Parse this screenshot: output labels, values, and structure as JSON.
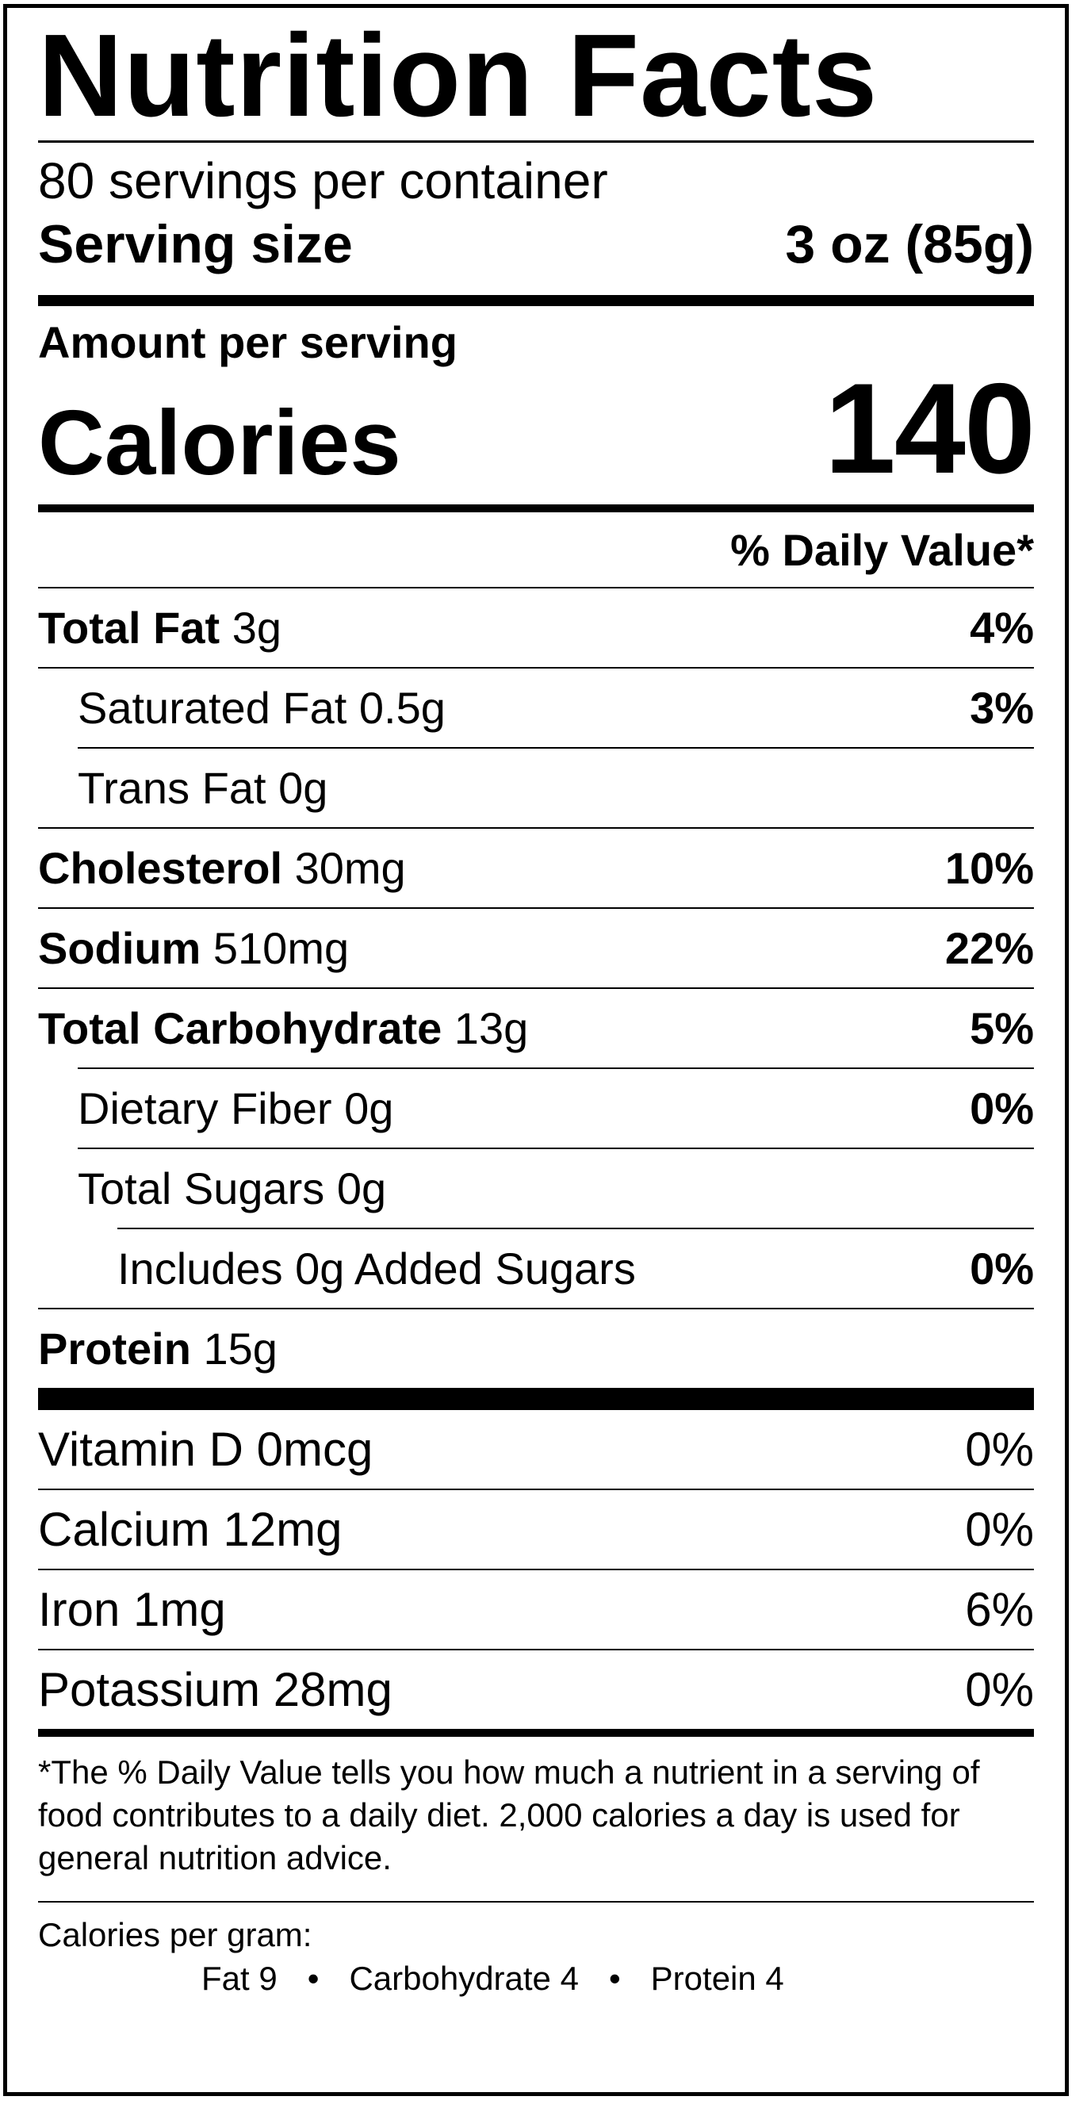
{
  "title": "Nutrition Facts",
  "servings_per_container": "80 servings per container",
  "serving_size": {
    "label": "Serving size",
    "value": "3 oz (85g)"
  },
  "amount_per_serving": "Amount per serving",
  "calories": {
    "label": "Calories",
    "value": "140"
  },
  "daily_value_header": "% Daily Value*",
  "nutrients": [
    {
      "name": "Total Fat",
      "amount": " 3g",
      "dv": "4%"
    },
    {
      "name": "Saturated Fat",
      "amount": " 0.5g",
      "dv": "3%"
    },
    {
      "name": "Trans Fat",
      "amount": " 0g",
      "dv": ""
    },
    {
      "name": "Cholesterol",
      "amount": " 30mg",
      "dv": "10%"
    },
    {
      "name": "Sodium",
      "amount": " 510mg",
      "dv": "22%"
    },
    {
      "name": "Total Carbohydrate",
      "amount": " 13g",
      "dv": "5%"
    },
    {
      "name": "Dietary Fiber",
      "amount": " 0g",
      "dv": "0%"
    },
    {
      "name": "Total Sugars",
      "amount": " 0g",
      "dv": ""
    },
    {
      "name": "Includes 0g Added Sugars",
      "amount": "",
      "dv": "0%"
    },
    {
      "name": "Protein",
      "amount": " 15g",
      "dv": ""
    }
  ],
  "vitamins": [
    {
      "label": "Vitamin D 0mcg",
      "dv": "0%"
    },
    {
      "label": "Calcium 12mg",
      "dv": "0%"
    },
    {
      "label": "Iron 1mg",
      "dv": "6%"
    },
    {
      "label": "Potassium 28mg",
      "dv": "0%"
    }
  ],
  "footnote": "*The % Daily Value tells you how much a nutrient in a serving of food contributes to a daily diet. 2,000 calories a day is used for general nutrition advice.",
  "calories_per_gram": {
    "label": "Calories per gram:",
    "fat": "Fat 9",
    "carbohydrate": "Carbohydrate 4",
    "protein": "Protein 4",
    "separator": "•"
  }
}
